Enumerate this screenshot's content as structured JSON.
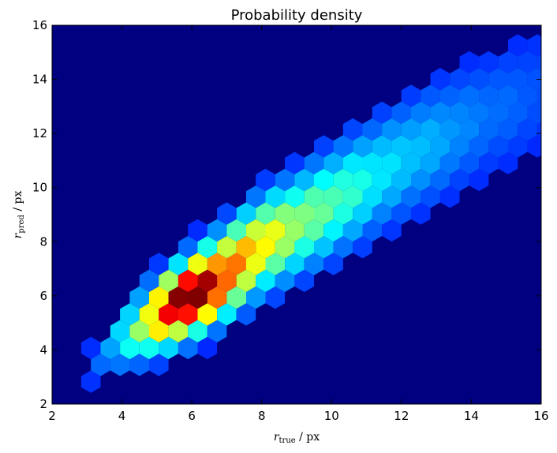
{
  "chart_data": {
    "type": "heatmap",
    "subtype": "hexbin",
    "title": "Probability density",
    "xlabel": {
      "var": "r",
      "sub": "true",
      "unit": " / px"
    },
    "ylabel": {
      "var": "r",
      "sub": "pred",
      "unit": " / px"
    },
    "xlim": [
      2,
      16
    ],
    "ylim": [
      2,
      16
    ],
    "x_ticks": [
      "2",
      "4",
      "6",
      "8",
      "10",
      "12",
      "14",
      "16"
    ],
    "y_ticks": [
      "2",
      "4",
      "6",
      "8",
      "10",
      "12",
      "14",
      "16"
    ],
    "colormap": "jet",
    "background_color": "#000080",
    "grid": false,
    "density_model": {
      "correlation_direction": "positive",
      "peak": {
        "x": 6.1,
        "y": 6.0
      },
      "ridge": [
        {
          "x": 3.0,
          "y": 3.3
        },
        {
          "x": 4.0,
          "y": 4.4
        },
        {
          "x": 5.0,
          "y": 5.2
        },
        {
          "x": 6.0,
          "y": 6.0
        },
        {
          "x": 7.0,
          "y": 6.9
        },
        {
          "x": 8.0,
          "y": 7.9
        },
        {
          "x": 9.0,
          "y": 8.6
        },
        {
          "x": 10.0,
          "y": 9.4
        },
        {
          "x": 11.0,
          "y": 10.2
        },
        {
          "x": 12.0,
          "y": 11.0
        },
        {
          "x": 13.0,
          "y": 11.7
        },
        {
          "x": 14.0,
          "y": 12.4
        },
        {
          "x": 15.0,
          "y": 13.0
        }
      ]
    }
  }
}
